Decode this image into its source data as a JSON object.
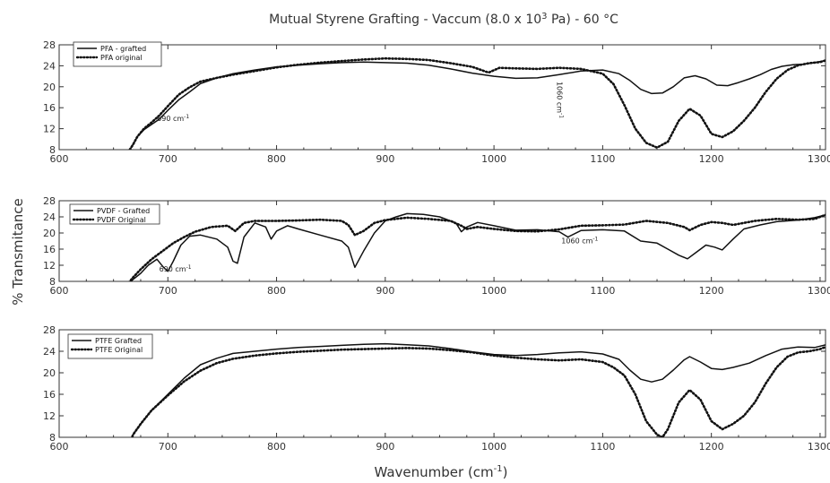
{
  "figure": {
    "title_pre": "Mutual Styrene Grafting - Vaccum (8.0 x 10",
    "title_sup": "3",
    "title_post": " Pa) - 60 °C",
    "ylabel": "% Transmitance",
    "xlabel_pre": "Wavenumber (cm",
    "xlabel_sup": "-1",
    "xlabel_post": ")"
  },
  "chart_data": [
    {
      "type": "line",
      "xlim": [
        600,
        1305
      ],
      "ylim": [
        8,
        28
      ],
      "xticks": [
        600,
        700,
        800,
        900,
        1000,
        1100,
        1200,
        1300
      ],
      "yticks": [
        8,
        12,
        16,
        20,
        24,
        28
      ],
      "legend_position": "top-left",
      "series": [
        {
          "name": "PFA - grafted",
          "style": "solid",
          "x": [
            665,
            668,
            672,
            678,
            685,
            692,
            700,
            710,
            720,
            730,
            745,
            760,
            780,
            800,
            820,
            840,
            860,
            880,
            900,
            920,
            940,
            960,
            980,
            1000,
            1020,
            1040,
            1060,
            1080,
            1100,
            1115,
            1125,
            1135,
            1145,
            1155,
            1165,
            1175,
            1185,
            1195,
            1205,
            1215,
            1225,
            1235,
            1245,
            1255,
            1265,
            1275,
            1285,
            1295,
            1305
          ],
          "y": [
            8,
            9,
            10.5,
            11.8,
            12.8,
            13.8,
            15.5,
            17.5,
            19,
            20.6,
            21.7,
            22.5,
            23.2,
            23.8,
            24.1,
            24.4,
            24.6,
            24.7,
            24.6,
            24.5,
            24.1,
            23.4,
            22.6,
            22.0,
            21.6,
            21.7,
            22.3,
            23.0,
            23.2,
            22.5,
            21.2,
            19.5,
            18.7,
            18.8,
            20.0,
            21.7,
            22.1,
            21.5,
            20.3,
            20.2,
            20.8,
            21.5,
            22.3,
            23.3,
            23.9,
            24.2,
            24.3,
            24.6,
            25.0
          ]
        },
        {
          "name": "PFA original",
          "style": "dotted",
          "x": [
            665,
            668,
            672,
            678,
            685,
            692,
            700,
            710,
            720,
            730,
            745,
            760,
            780,
            800,
            820,
            840,
            860,
            880,
            900,
            920,
            940,
            960,
            980,
            995,
            1005,
            1020,
            1040,
            1060,
            1080,
            1100,
            1110,
            1120,
            1130,
            1140,
            1150,
            1160,
            1170,
            1180,
            1190,
            1200,
            1210,
            1220,
            1230,
            1240,
            1250,
            1260,
            1270,
            1280,
            1290,
            1300,
            1305
          ],
          "y": [
            8,
            9,
            10.5,
            12,
            13.2,
            14.5,
            16.3,
            18.5,
            19.9,
            21.0,
            21.7,
            22.3,
            23.0,
            23.7,
            24.2,
            24.6,
            24.9,
            25.2,
            25.4,
            25.3,
            25.1,
            24.5,
            23.8,
            22.7,
            23.6,
            23.5,
            23.4,
            23.6,
            23.4,
            22.5,
            20.5,
            16.5,
            12.0,
            9.3,
            8.4,
            9.5,
            13.5,
            15.8,
            14.5,
            11.0,
            10.4,
            11.5,
            13.5,
            16.0,
            19.0,
            21.5,
            23.2,
            24.1,
            24.5,
            24.7,
            25.0
          ]
        }
      ],
      "annotations": [
        {
          "text": "690 cm-1",
          "x": 690,
          "y": 13.5
        },
        {
          "text": "1060 cm-1",
          "x": 1058,
          "y": 21,
          "rotation": 90
        }
      ]
    },
    {
      "type": "line",
      "xlim": [
        600,
        1305
      ],
      "ylim": [
        8,
        28
      ],
      "xticks": [
        600,
        700,
        800,
        900,
        1000,
        1100,
        1200,
        1300
      ],
      "yticks": [
        8,
        12,
        16,
        20,
        24,
        28
      ],
      "legend_position": "top-left",
      "series": [
        {
          "name": "PVDF - Grafted",
          "style": "solid",
          "x": [
            662,
            668,
            675,
            682,
            690,
            696,
            700,
            705,
            712,
            720,
            730,
            745,
            755,
            760,
            764,
            770,
            780,
            790,
            795,
            800,
            810,
            820,
            840,
            860,
            866,
            872,
            880,
            890,
            900,
            910,
            920,
            935,
            950,
            965,
            970,
            975,
            985,
            1000,
            1020,
            1040,
            1060,
            1068,
            1080,
            1100,
            1120,
            1135,
            1150,
            1160,
            1170,
            1178,
            1185,
            1195,
            1203,
            1210,
            1220,
            1230,
            1245,
            1260,
            1280,
            1295,
            1305
          ],
          "y": [
            7,
            8.5,
            10,
            12,
            13.5,
            11.5,
            10.5,
            13,
            17,
            19.2,
            19.5,
            18.5,
            16.5,
            13,
            12.5,
            19,
            22.5,
            21.5,
            18.5,
            20.5,
            21.8,
            21.0,
            19.5,
            18.0,
            16.5,
            11.5,
            15.5,
            20.0,
            23.0,
            24.0,
            24.8,
            24.6,
            24.0,
            22.5,
            20.3,
            21.5,
            22.6,
            21.8,
            20.7,
            20.8,
            20.3,
            19.0,
            20.6,
            20.8,
            20.5,
            18.0,
            17.5,
            16.0,
            14.5,
            13.6,
            15.0,
            17.0,
            16.5,
            15.8,
            18.5,
            21.0,
            22.0,
            22.8,
            23.2,
            23.8,
            24.5
          ]
        },
        {
          "name": "PVDF Original",
          "style": "dotted",
          "x": [
            662,
            668,
            675,
            685,
            695,
            705,
            715,
            725,
            740,
            755,
            762,
            770,
            780,
            800,
            820,
            840,
            860,
            866,
            872,
            880,
            890,
            900,
            920,
            940,
            960,
            970,
            975,
            985,
            1000,
            1020,
            1040,
            1060,
            1080,
            1100,
            1120,
            1140,
            1160,
            1175,
            1180,
            1190,
            1200,
            1210,
            1220,
            1240,
            1260,
            1280,
            1295,
            1305
          ],
          "y": [
            7,
            9,
            11,
            13.5,
            15.5,
            17.5,
            19.0,
            20.3,
            21.5,
            21.8,
            20.5,
            22.5,
            23.0,
            23.0,
            23.1,
            23.3,
            23.0,
            22.0,
            19.5,
            20.5,
            22.5,
            23.2,
            23.8,
            23.5,
            23.0,
            21.8,
            21.0,
            21.5,
            21.0,
            20.5,
            20.4,
            20.9,
            21.8,
            21.9,
            22.1,
            23.0,
            22.5,
            21.5,
            20.7,
            22.0,
            22.7,
            22.5,
            22.0,
            23.0,
            23.5,
            23.3,
            23.5,
            24.5
          ]
        }
      ],
      "annotations": [
        {
          "text": "690 cm-1",
          "x": 692,
          "y": 10.5
        },
        {
          "text": "1060 cm-1",
          "x": 1062,
          "y": 17.5
        }
      ]
    },
    {
      "type": "line",
      "xlim": [
        600,
        1305
      ],
      "ylim": [
        8,
        28
      ],
      "xticks": [
        600,
        700,
        800,
        900,
        1000,
        1100,
        1200,
        1300
      ],
      "yticks": [
        8,
        12,
        16,
        20,
        24,
        28
      ],
      "legend_position": "top-left",
      "series": [
        {
          "name": "PTFE Grafted",
          "style": "solid",
          "x": [
            665,
            668,
            675,
            685,
            700,
            715,
            730,
            745,
            760,
            780,
            800,
            820,
            840,
            860,
            880,
            900,
            920,
            940,
            960,
            980,
            1000,
            1020,
            1040,
            1060,
            1080,
            1100,
            1115,
            1125,
            1135,
            1145,
            1155,
            1165,
            1175,
            1180,
            1190,
            1200,
            1210,
            1220,
            1235,
            1250,
            1265,
            1280,
            1295,
            1305
          ],
          "y": [
            7,
            8.5,
            10.5,
            13.0,
            16.0,
            19.0,
            21.5,
            22.7,
            23.6,
            24.0,
            24.4,
            24.7,
            24.9,
            25.1,
            25.3,
            25.4,
            25.2,
            25.0,
            24.5,
            23.9,
            23.4,
            23.2,
            23.4,
            23.7,
            23.9,
            23.5,
            22.5,
            20.5,
            18.8,
            18.3,
            18.8,
            20.5,
            22.4,
            23.0,
            22.0,
            20.8,
            20.6,
            21.0,
            21.8,
            23.2,
            24.4,
            24.8,
            24.7,
            25.2
          ]
        },
        {
          "name": "PTFE Original",
          "style": "dotted",
          "x": [
            665,
            668,
            675,
            685,
            700,
            715,
            730,
            745,
            760,
            780,
            800,
            820,
            840,
            860,
            880,
            900,
            920,
            940,
            960,
            980,
            1000,
            1020,
            1040,
            1060,
            1080,
            1100,
            1110,
            1120,
            1130,
            1140,
            1150,
            1155,
            1160,
            1170,
            1180,
            1190,
            1200,
            1210,
            1220,
            1230,
            1240,
            1250,
            1260,
            1270,
            1280,
            1290,
            1300,
            1305
          ],
          "y": [
            7,
            8.5,
            10.5,
            13.0,
            15.8,
            18.4,
            20.4,
            21.8,
            22.6,
            23.2,
            23.6,
            23.9,
            24.1,
            24.3,
            24.4,
            24.5,
            24.6,
            24.5,
            24.2,
            23.8,
            23.2,
            22.8,
            22.5,
            22.3,
            22.5,
            22.0,
            21.0,
            19.5,
            16.0,
            11.0,
            8.5,
            8.0,
            9.5,
            14.5,
            16.8,
            15.0,
            11.0,
            9.5,
            10.5,
            12.0,
            14.5,
            18.0,
            21.0,
            23.0,
            23.8,
            24.0,
            24.4,
            24.8
          ]
        }
      ],
      "annotations": []
    }
  ]
}
